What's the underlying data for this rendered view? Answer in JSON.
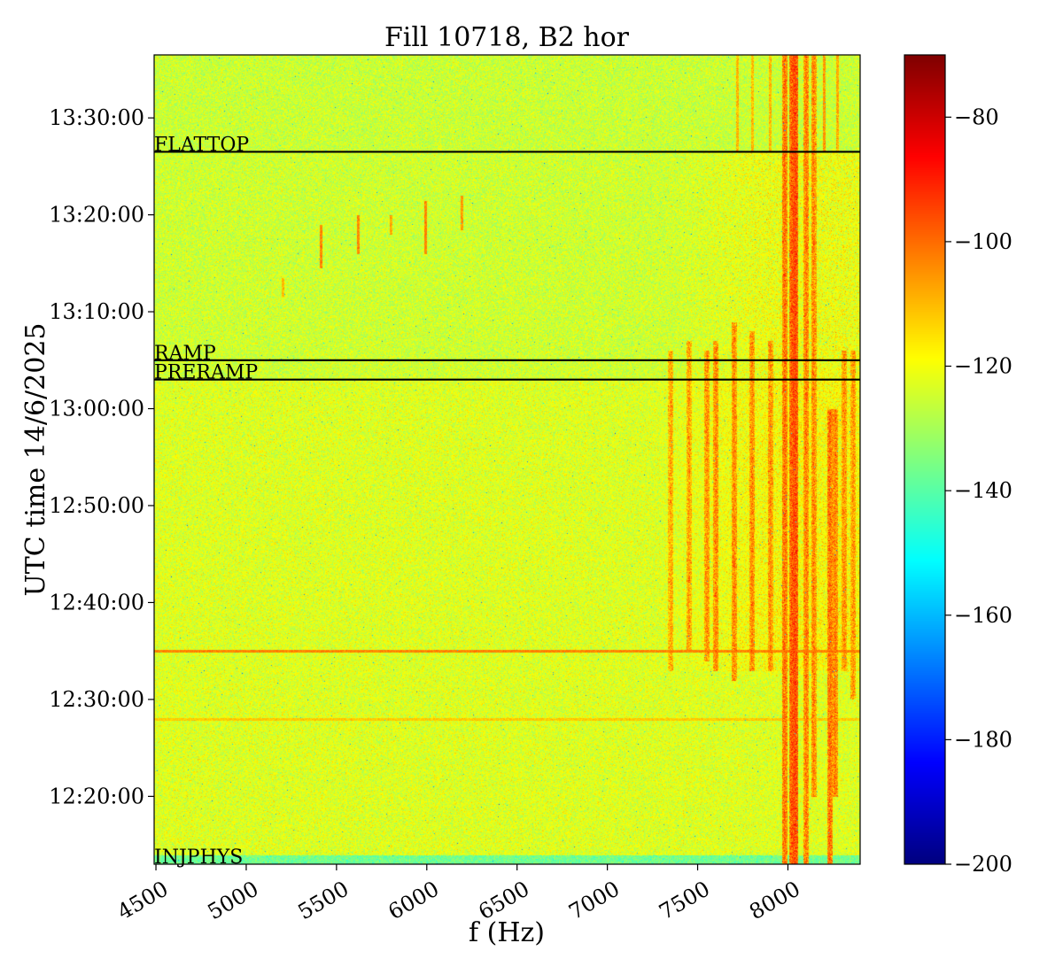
{
  "chart_data": {
    "type": "heatmap",
    "title": "Fill 10718, B2 hor",
    "xlabel": "f (Hz)",
    "ylabel": "UTC time 14/6/2025",
    "xlim": [
      4490,
      8400
    ],
    "ylim": [
      "12:13:00",
      "13:36:30"
    ],
    "x_ticks": [
      {
        "value": 4500,
        "label": "4500"
      },
      {
        "value": 5000,
        "label": "5000"
      },
      {
        "value": 5500,
        "label": "5500"
      },
      {
        "value": 6000,
        "label": "6000"
      },
      {
        "value": 6500,
        "label": "6500"
      },
      {
        "value": 7000,
        "label": "7000"
      },
      {
        "value": 7500,
        "label": "7500"
      },
      {
        "value": 8000,
        "label": "8000"
      }
    ],
    "y_ticks": [
      {
        "value": "12:20:00",
        "label": "12:20:00"
      },
      {
        "value": "12:30:00",
        "label": "12:30:00"
      },
      {
        "value": "12:40:00",
        "label": "12:40:00"
      },
      {
        "value": "12:50:00",
        "label": "12:50:00"
      },
      {
        "value": "13:00:00",
        "label": "13:00:00"
      },
      {
        "value": "13:10:00",
        "label": "13:10:00"
      },
      {
        "value": "13:20:00",
        "label": "13:20:00"
      },
      {
        "value": "13:30:00",
        "label": "13:30:00"
      }
    ],
    "colorbar": {
      "colormap": "jet",
      "range": [
        -200,
        -70
      ],
      "ticks": [
        {
          "value": -80,
          "label": "−80"
        },
        {
          "value": -100,
          "label": "−100"
        },
        {
          "value": -120,
          "label": "−120"
        },
        {
          "value": -140,
          "label": "−140"
        },
        {
          "value": -160,
          "label": "−160"
        },
        {
          "value": -180,
          "label": "−180"
        },
        {
          "value": -200,
          "label": "−200"
        }
      ]
    },
    "events": [
      {
        "label": "INJPHYS",
        "time": "12:13:00"
      },
      {
        "label": "PRERAMP",
        "time": "13:03:00"
      },
      {
        "label": "RAMP",
        "time": "13:05:00"
      },
      {
        "label": "FLATTOP",
        "time": "13:26:30"
      }
    ],
    "levels": {
      "baseline": -125,
      "early_band": -137,
      "ramp_region": -120
    },
    "features": {
      "horizontal_lines": [
        {
          "time": "12:35:00",
          "level": -103
        },
        {
          "time": "12:28:00",
          "level": -112
        }
      ],
      "high_freq_lines": [
        {
          "f": 7350,
          "from": "12:33:00",
          "to": "13:06:00",
          "level": -107
        },
        {
          "f": 7450,
          "from": "12:35:00",
          "to": "13:07:00",
          "level": -106
        },
        {
          "f": 7550,
          "from": "12:34:00",
          "to": "13:06:00",
          "level": -104
        },
        {
          "f": 7600,
          "from": "12:33:00",
          "to": "13:07:00",
          "level": -103
        },
        {
          "f": 7700,
          "from": "12:32:00",
          "to": "13:09:00",
          "level": -103
        },
        {
          "f": 7800,
          "from": "12:33:00",
          "to": "13:08:00",
          "level": -103
        },
        {
          "f": 7900,
          "from": "12:33:00",
          "to": "13:07:00",
          "level": -104
        },
        {
          "f": 7980,
          "from": "12:13:00",
          "to": "13:36:30",
          "level": -100
        },
        {
          "f": 8020,
          "from": "12:13:00",
          "to": "13:36:30",
          "level": -97
        },
        {
          "f": 8040,
          "from": "12:13:00",
          "to": "13:36:30",
          "level": -95
        },
        {
          "f": 8100,
          "from": "12:13:00",
          "to": "13:36:30",
          "level": -102
        },
        {
          "f": 8140,
          "from": "12:20:00",
          "to": "13:36:30",
          "level": -103
        },
        {
          "f": 8230,
          "from": "12:13:00",
          "to": "13:00:00",
          "level": -100
        },
        {
          "f": 8260,
          "from": "12:20:00",
          "to": "13:00:00",
          "level": -102
        },
        {
          "f": 8310,
          "from": "12:33:00",
          "to": "13:06:00",
          "level": -104
        },
        {
          "f": 8360,
          "from": "12:30:00",
          "to": "13:06:00",
          "level": -105
        }
      ],
      "flattop_lines": [
        {
          "f": 7720,
          "level": -110
        },
        {
          "f": 7800,
          "level": -110
        },
        {
          "f": 7900,
          "level": -110
        },
        {
          "f": 8200,
          "level": -106
        },
        {
          "f": 8270,
          "level": -108
        }
      ],
      "short_streaks": [
        {
          "f": 5410,
          "from": "13:14:30",
          "to": "13:19:00",
          "level": -103
        },
        {
          "f": 5620,
          "from": "13:16:00",
          "to": "13:20:00",
          "level": -104
        },
        {
          "f": 5800,
          "from": "13:18:00",
          "to": "13:20:00",
          "level": -108
        },
        {
          "f": 5990,
          "from": "13:16:00",
          "to": "13:21:30",
          "level": -103
        },
        {
          "f": 6190,
          "from": "13:18:30",
          "to": "13:22:00",
          "level": -106
        },
        {
          "f": 5200,
          "from": "13:11:30",
          "to": "13:13:30",
          "level": -110
        }
      ]
    }
  }
}
